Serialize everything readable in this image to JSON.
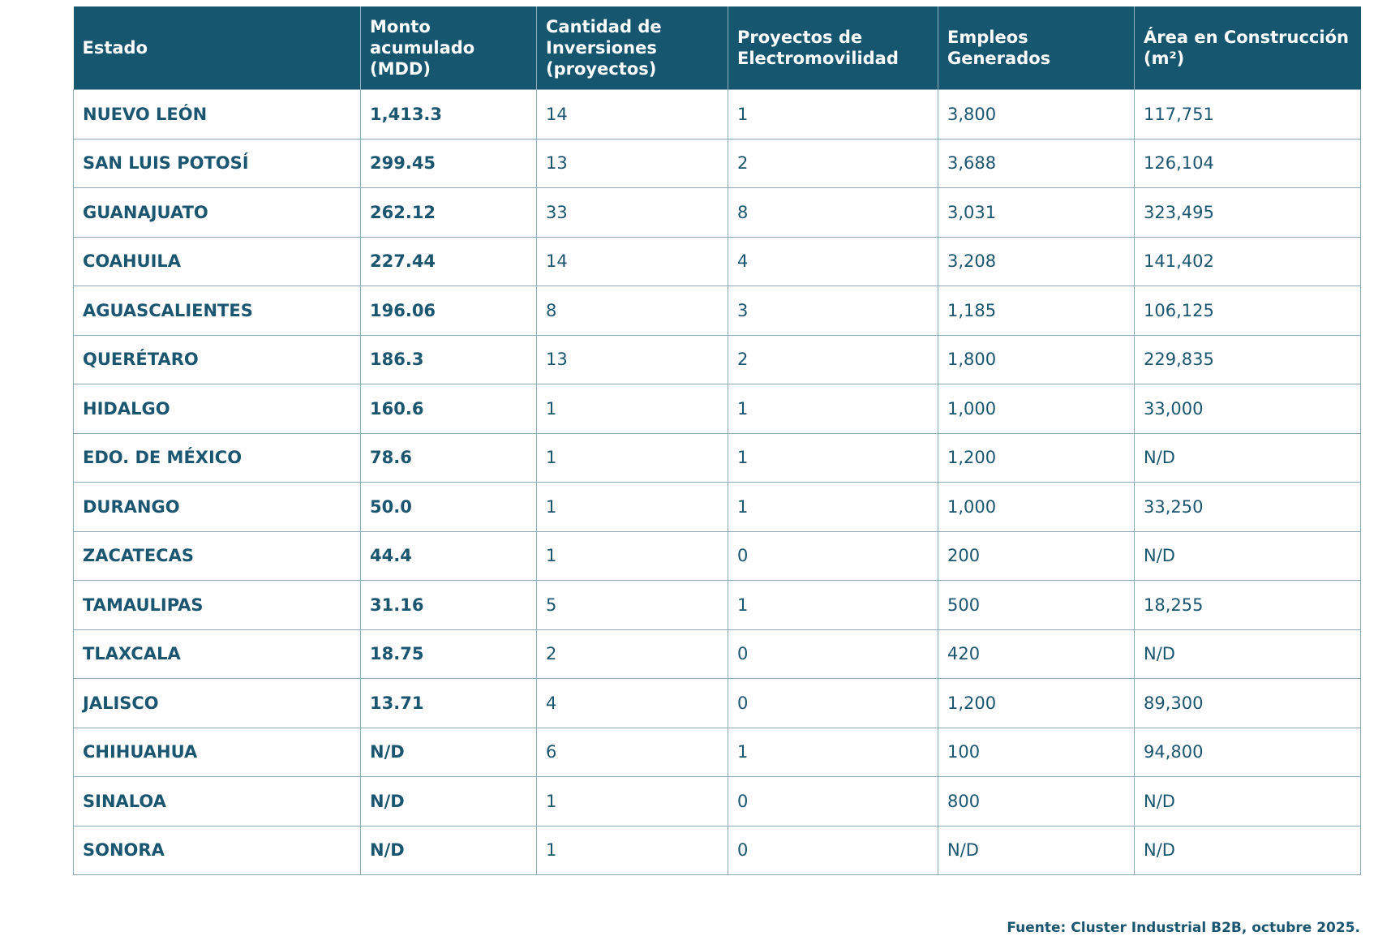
{
  "table": {
    "headers": [
      [
        "Estado"
      ],
      [
        "Monto",
        "acumulado",
        "(MDD)"
      ],
      [
        "Cantidad de",
        "Inversiones",
        "(proyectos)"
      ],
      [
        "Proyectos de",
        "Electromovilidad"
      ],
      [
        "Empleos",
        "Generados"
      ],
      [
        "Área en Construcción",
        "(m²)"
      ]
    ],
    "rows": [
      [
        "NUEVO LEÓN",
        "1,413.3",
        "14",
        "1",
        "3,800",
        "117,751"
      ],
      [
        "SAN LUIS POTOSÍ",
        "299.45",
        "13",
        "2",
        "3,688",
        "126,104"
      ],
      [
        "GUANAJUATO",
        "262.12",
        "33",
        "8",
        "3,031",
        "323,495"
      ],
      [
        "COAHUILA",
        "227.44",
        "14",
        "4",
        "3,208",
        "141,402"
      ],
      [
        "AGUASCALIENTES",
        "196.06",
        "8",
        "3",
        "1,185",
        "106,125"
      ],
      [
        "QUERÉTARO",
        "186.3",
        "13",
        "2",
        "1,800",
        "229,835"
      ],
      [
        "HIDALGO",
        "160.6",
        "1",
        "1",
        "1,000",
        "33,000"
      ],
      [
        "EDO. DE MÉXICO",
        "78.6",
        "1",
        "1",
        "1,200",
        "N/D"
      ],
      [
        "DURANGO",
        "50.0",
        "1",
        "1",
        "1,000",
        "33,250"
      ],
      [
        "ZACATECAS",
        "44.4",
        "1",
        "0",
        "200",
        "N/D"
      ],
      [
        "TAMAULIPAS",
        "31.16",
        "5",
        "1",
        "500",
        "18,255"
      ],
      [
        "TLAXCALA",
        "18.75",
        "2",
        "0",
        "420",
        "N/D"
      ],
      [
        "JALISCO",
        "13.71",
        "4",
        "0",
        "1,200",
        "89,300"
      ],
      [
        "CHIHUAHUA",
        "N/D",
        "6",
        "1",
        "100",
        "94,800"
      ],
      [
        "SINALOA",
        "N/D",
        "1",
        "0",
        "800",
        "N/D"
      ],
      [
        "SONORA",
        "N/D",
        "1",
        "0",
        "N/D",
        "N/D"
      ]
    ]
  },
  "footer": {
    "source": "Fuente: Cluster Industrial B2B, octubre 2025."
  }
}
